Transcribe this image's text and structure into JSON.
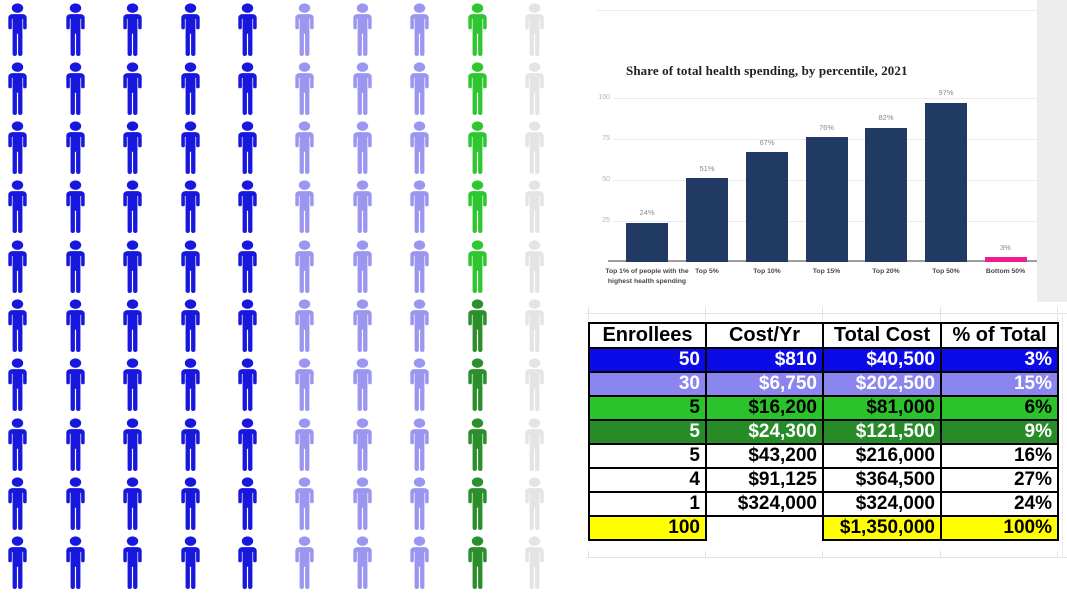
{
  "pictogram": {
    "rows": 10,
    "columns": 10,
    "palette": {
      "blue": "#1717de",
      "periwinkle": "#9b97f1",
      "green": "#2fc72f",
      "darkgreen": "#2b8f2b",
      "gray": "#e4e4e4"
    },
    "cells": [
      [
        "blue",
        "blue",
        "blue",
        "blue",
        "blue",
        "periwinkle",
        "periwinkle",
        "periwinkle",
        "green",
        "gray"
      ],
      [
        "blue",
        "blue",
        "blue",
        "blue",
        "blue",
        "periwinkle",
        "periwinkle",
        "periwinkle",
        "green",
        "gray"
      ],
      [
        "blue",
        "blue",
        "blue",
        "blue",
        "blue",
        "periwinkle",
        "periwinkle",
        "periwinkle",
        "green",
        "gray"
      ],
      [
        "blue",
        "blue",
        "blue",
        "blue",
        "blue",
        "periwinkle",
        "periwinkle",
        "periwinkle",
        "green",
        "gray"
      ],
      [
        "blue",
        "blue",
        "blue",
        "blue",
        "blue",
        "periwinkle",
        "periwinkle",
        "periwinkle",
        "green",
        "gray"
      ],
      [
        "blue",
        "blue",
        "blue",
        "blue",
        "blue",
        "periwinkle",
        "periwinkle",
        "periwinkle",
        "darkgreen",
        "gray"
      ],
      [
        "blue",
        "blue",
        "blue",
        "blue",
        "blue",
        "periwinkle",
        "periwinkle",
        "periwinkle",
        "darkgreen",
        "gray"
      ],
      [
        "blue",
        "blue",
        "blue",
        "blue",
        "blue",
        "periwinkle",
        "periwinkle",
        "periwinkle",
        "darkgreen",
        "gray"
      ],
      [
        "blue",
        "blue",
        "blue",
        "blue",
        "blue",
        "periwinkle",
        "periwinkle",
        "periwinkle",
        "darkgreen",
        "gray"
      ],
      [
        "blue",
        "blue",
        "blue",
        "blue",
        "blue",
        "periwinkle",
        "periwinkle",
        "periwinkle",
        "darkgreen",
        "gray"
      ]
    ]
  },
  "chart_data": {
    "type": "bar",
    "title": "Share of total health spending, by percentile, 2021",
    "categories": [
      "Top 1% of people with the highest health spending",
      "Top 5%",
      "Top 10%",
      "Top 15%",
      "Top 20%",
      "Top 50%",
      "Bottom 50%"
    ],
    "values": [
      24,
      51,
      67,
      76,
      82,
      97,
      3
    ],
    "labels": [
      "24%",
      "51%",
      "67%",
      "76%",
      "82%",
      "97%",
      "3%"
    ],
    "bar_colors": [
      "#213a63",
      "#213a63",
      "#213a63",
      "#213a63",
      "#213a63",
      "#213a63",
      "#ec1e8d"
    ],
    "yticks": [
      25,
      50,
      75,
      100
    ],
    "ylim": [
      0,
      100
    ],
    "xlabel": "",
    "ylabel": "",
    "grid": true,
    "legend_position": "none"
  },
  "table": {
    "headers": [
      "Enrollees",
      "Cost/Yr",
      "Total Cost",
      "% of Total"
    ],
    "rows": [
      {
        "cells": [
          "50",
          "$810",
          "$40,500",
          "3%"
        ],
        "bg": "#0b0be8",
        "fg": "#ffffff"
      },
      {
        "cells": [
          "30",
          "$6,750",
          "$202,500",
          "15%"
        ],
        "bg": "#8a85ef",
        "fg": "#ffffff"
      },
      {
        "cells": [
          "5",
          "$16,200",
          "$81,000",
          "6%"
        ],
        "bg": "#2bc32b",
        "fg": "#000000"
      },
      {
        "cells": [
          "5",
          "$24,300",
          "$121,500",
          "9%"
        ],
        "bg": "#278c27",
        "fg": "#ffffff"
      },
      {
        "cells": [
          "5",
          "$43,200",
          "$216,000",
          "16%"
        ],
        "bg": "#ffffff",
        "fg": "#000000"
      },
      {
        "cells": [
          "4",
          "$91,125",
          "$364,500",
          "27%"
        ],
        "bg": "#ffffff",
        "fg": "#000000"
      },
      {
        "cells": [
          "1",
          "$324,000",
          "$324,000",
          "24%"
        ],
        "bg": "#ffffff",
        "fg": "#000000"
      },
      {
        "cells": [
          "100",
          "",
          "$1,350,000",
          "100%"
        ],
        "bg": "#ffff00",
        "fg": "#000000",
        "cell_bgs": [
          "#ffff00",
          "#ffffff",
          "#ffff00",
          "#ffff00"
        ]
      }
    ]
  }
}
